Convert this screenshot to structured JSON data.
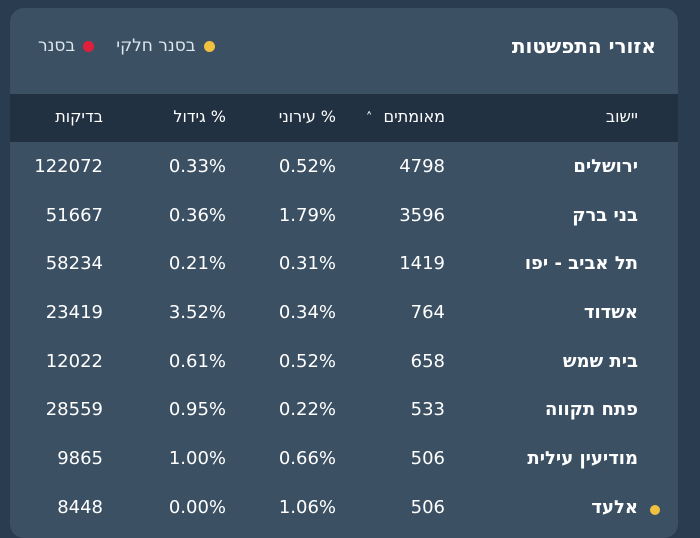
{
  "card": {
    "title": "אזורי התפשטות"
  },
  "legend": {
    "items": [
      {
        "label": "בסנר",
        "color": "#e0203a"
      },
      {
        "label": "בסנר חלקי",
        "color": "#f0c040"
      }
    ]
  },
  "table": {
    "headers": {
      "city": "יישוב",
      "confirmed": "מאומתים",
      "urban": "% עירוני",
      "growth": "% גידול",
      "tests": "בדיקות"
    },
    "sort_icon": "˄",
    "rows": [
      {
        "city": "ירושלים",
        "confirmed": "4798",
        "urban": "0.52%",
        "growth": "0.33%",
        "tests": "122072",
        "marker": ""
      },
      {
        "city": "בני ברק",
        "confirmed": "3596",
        "urban": "1.79%",
        "growth": "0.36%",
        "tests": "51667",
        "marker": ""
      },
      {
        "city": "תל אביב - יפו",
        "confirmed": "1419",
        "urban": "0.31%",
        "growth": "0.21%",
        "tests": "58234",
        "marker": ""
      },
      {
        "city": "אשדוד",
        "confirmed": "764",
        "urban": "0.34%",
        "growth": "3.52%",
        "tests": "23419",
        "marker": ""
      },
      {
        "city": "בית שמש",
        "confirmed": "658",
        "urban": "0.52%",
        "growth": "0.61%",
        "tests": "12022",
        "marker": ""
      },
      {
        "city": "פתח תקווה",
        "confirmed": "533",
        "urban": "0.22%",
        "growth": "0.95%",
        "tests": "28559",
        "marker": ""
      },
      {
        "city": "מודיעין עילית",
        "confirmed": "506",
        "urban": "0.66%",
        "growth": "1.00%",
        "tests": "9865",
        "marker": ""
      },
      {
        "city": "אלעד",
        "confirmed": "506",
        "urban": "1.06%",
        "growth": "0.00%",
        "tests": "8448",
        "marker": "#f0c040"
      }
    ]
  }
}
